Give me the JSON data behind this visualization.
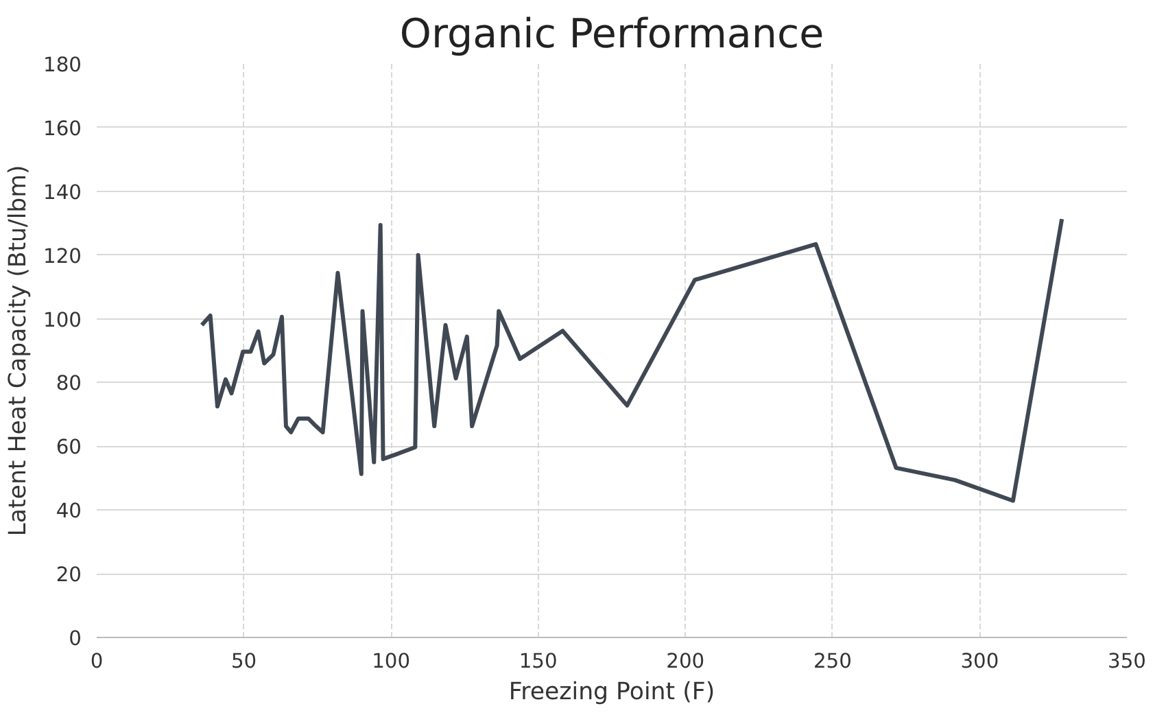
{
  "chart_data": {
    "type": "line",
    "title": "Organic Performance",
    "xlabel": "Freezing Point (F)",
    "ylabel": "Latent Heat Capacity (Btu/lbm)",
    "xlim": [
      0,
      350
    ],
    "xticks": [
      0,
      50,
      100,
      150,
      200,
      250,
      300,
      350
    ],
    "ylim": [
      0,
      180
    ],
    "yticks": [
      0,
      20,
      40,
      60,
      80,
      100,
      120,
      140,
      160,
      180
    ],
    "grid": true,
    "series": [
      {
        "color": "#404854",
        "x": [
          35.7,
          38.6,
          41,
          43.8,
          45.8,
          49.7,
          52.3,
          54.9,
          56.9,
          60,
          62.9,
          64.3,
          66,
          68.5,
          71.9,
          74.5,
          76.8,
          81.9,
          89.9,
          90.3,
          94.2,
          96.4,
          97.3,
          101.9,
          108.2,
          109.2,
          114.7,
          118.5,
          122,
          125.8,
          127.5,
          136,
          136.6,
          143.8,
          158.3,
          180.2,
          203.2,
          244.3,
          271.6,
          291.6,
          311.3,
          327.9
        ],
        "values": [
          98,
          101,
          72.5,
          81,
          76.6,
          89.7,
          89.7,
          96,
          86,
          88.8,
          100.6,
          66.3,
          64.4,
          68.7,
          68.7,
          66.3,
          64.4,
          114.4,
          51.3,
          102.4,
          55,
          129.4,
          56,
          57.5,
          59.7,
          120,
          66.3,
          98,
          81.3,
          94.4,
          66.3,
          91.6,
          102.4,
          87.4,
          96.2,
          72.8,
          112.2,
          123.4,
          53.2,
          49.4,
          42.9,
          131.3
        ]
      }
    ]
  }
}
